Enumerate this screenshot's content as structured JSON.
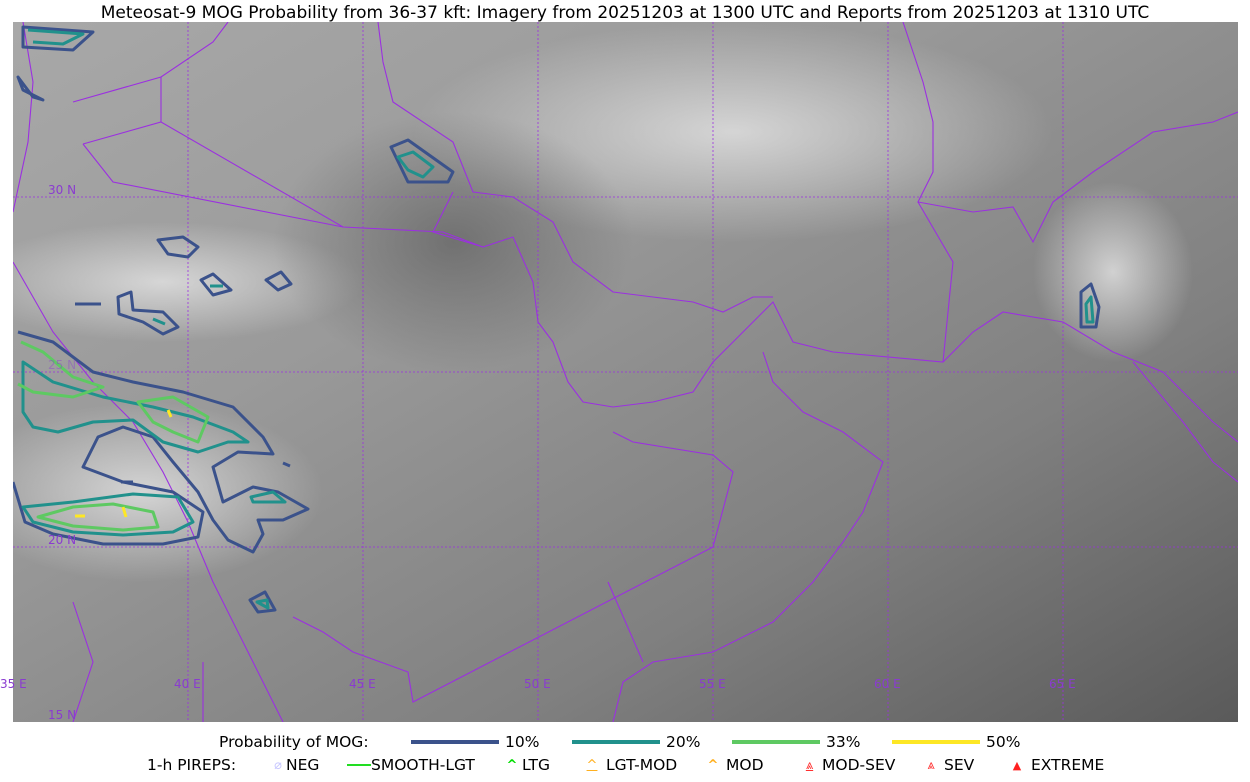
{
  "title": "Meteosat-9 MOG Probability from 36-37 kft: Imagery from 20251203 at 1300 UTC and Reports from 20251203 at 1310 UTC",
  "map": {
    "lat_labels": [
      "30 N",
      "25 N",
      "20 N",
      "15 N"
    ],
    "lon_labels": [
      "35 E",
      "40 E",
      "45 E",
      "50 E",
      "55 E",
      "60 E",
      "65 E"
    ],
    "border_color": "#9b30e0",
    "contour_colors": {
      "10": "#3b528b",
      "20": "#21918c",
      "33": "#5ec962",
      "50": "#fde725"
    }
  },
  "legend": {
    "prob_title": "Probability of MOG:",
    "prob_items": [
      {
        "label": "10%",
        "color": "#3b528b"
      },
      {
        "label": "20%",
        "color": "#21918c"
      },
      {
        "label": "33%",
        "color": "#5ec962"
      },
      {
        "label": "50%",
        "color": "#fde725"
      }
    ],
    "pirep_title": "1-h PIREPS:",
    "pirep_items": [
      {
        "label": "NEG",
        "icon": "neg-circle-slash",
        "color": "#c8c8ff"
      },
      {
        "label": "SMOOTH-LGT",
        "icon": "line",
        "color": "#22dd22"
      },
      {
        "label": "LTG",
        "icon": "caret",
        "color": "#00dd00"
      },
      {
        "label": "LGT-MOD",
        "icon": "caret-bar",
        "color": "#ffb020"
      },
      {
        "label": "MOD",
        "icon": "caret",
        "color": "#ffb020"
      },
      {
        "label": "MOD-SEV",
        "icon": "double-caret-bar",
        "color": "#ff3030"
      },
      {
        "label": "SEV",
        "icon": "double-caret",
        "color": "#ff3030"
      },
      {
        "label": "EXTREME",
        "icon": "filled-triangle",
        "color": "#ff2020"
      }
    ]
  }
}
